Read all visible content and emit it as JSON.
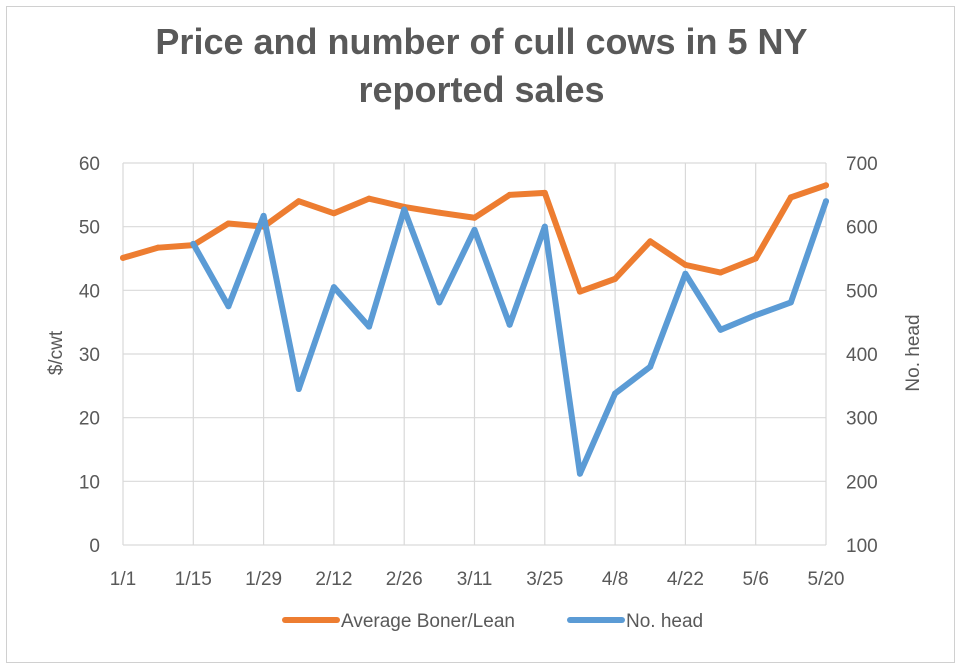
{
  "chart_data": {
    "type": "line",
    "title": "Price and number of cull cows in 5 NY\nreported sales",
    "ylabel": "$/cwt",
    "y2label": "No. head",
    "ylim": [
      0,
      60
    ],
    "y2lim": [
      100,
      700
    ],
    "yticks": [
      "0",
      "10",
      "20",
      "30",
      "40",
      "50",
      "60"
    ],
    "y2ticks": [
      "100",
      "200",
      "300",
      "400",
      "500",
      "600",
      "700"
    ],
    "xtick_labels": [
      "1/1",
      "1/15",
      "1/29",
      "2/12",
      "2/26",
      "3/11",
      "3/25",
      "4/8",
      "4/22",
      "5/6",
      "5/20"
    ],
    "x": [
      "1/1",
      "1/8",
      "1/15",
      "1/22",
      "1/29",
      "2/5",
      "2/12",
      "2/19",
      "2/26",
      "3/4",
      "3/11",
      "3/18",
      "3/25",
      "4/1",
      "4/8",
      "4/15",
      "4/22",
      "4/29",
      "5/6",
      "5/13",
      "5/20"
    ],
    "grid": true,
    "legend_position": "bottom",
    "series": [
      {
        "name": "Average Boner/Lean",
        "axis": "left",
        "color": "#ed7d31",
        "values": [
          45.1,
          46.7,
          47.1,
          50.5,
          50.0,
          54.0,
          52.1,
          54.4,
          53.1,
          52.2,
          51.4,
          55.0,
          55.3,
          39.8,
          41.8,
          47.7,
          44.0,
          42.8,
          45.0,
          54.6,
          56.5
        ]
      },
      {
        "name": "No. head",
        "axis": "right",
        "color": "#5b9bd5",
        "values": [
          null,
          null,
          573,
          475,
          617,
          345,
          505,
          443,
          627,
          481,
          595,
          446,
          600,
          212,
          338,
          380,
          526,
          438,
          461,
          481,
          640
        ]
      }
    ]
  }
}
